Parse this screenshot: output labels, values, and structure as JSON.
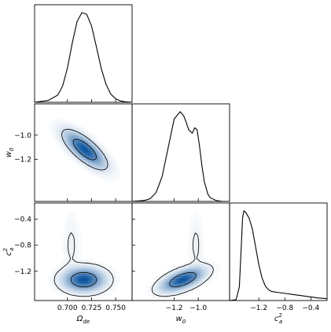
{
  "chart_data": {
    "type": "corner",
    "colors": {
      "density": "#1f77b4",
      "line": "#000000"
    },
    "parameters": [
      {
        "key": "omega_de",
        "label_base": "Ω",
        "label_sub": "de",
        "range": [
          0.666,
          0.767
        ],
        "ticks": [
          {
            "value": 0.7,
            "label": "0.700"
          },
          {
            "value": 0.725,
            "label": "0.725"
          },
          {
            "value": 0.75,
            "label": "0.750"
          }
        ]
      },
      {
        "key": "w0",
        "label_base": "w",
        "label_sub": "0",
        "range": [
          -1.55,
          -0.74
        ],
        "ticks": [
          {
            "value": -1.2,
            "label": "−1.2"
          },
          {
            "value": -1.0,
            "label": "−1.0"
          }
        ]
      },
      {
        "key": "ca2",
        "label_base": "c",
        "label_sub": "a",
        "label_sup": "2",
        "range": [
          -1.65,
          -0.15
        ],
        "ticks": [
          {
            "value": -1.2,
            "label": "−1.2"
          },
          {
            "value": -0.8,
            "label": "−0.8"
          },
          {
            "value": -0.4,
            "label": "−0.4"
          }
        ]
      }
    ],
    "marginals": {
      "omega_de": {
        "x": [
          0.666,
          0.68,
          0.69,
          0.695,
          0.7,
          0.705,
          0.71,
          0.715,
          0.72,
          0.725,
          0.73,
          0.735,
          0.74,
          0.745,
          0.75,
          0.755,
          0.76,
          0.767
        ],
        "density": [
          0.0,
          0.02,
          0.08,
          0.18,
          0.38,
          0.66,
          0.9,
          1.0,
          0.98,
          0.85,
          0.62,
          0.38,
          0.2,
          0.09,
          0.04,
          0.015,
          0.005,
          0.0
        ]
      },
      "w0": {
        "x": [
          -1.55,
          -1.45,
          -1.4,
          -1.35,
          -1.3,
          -1.25,
          -1.2,
          -1.15,
          -1.12,
          -1.1,
          -1.08,
          -1.05,
          -1.03,
          -1.01,
          -0.99,
          -0.97,
          -0.95,
          -0.92,
          -0.9,
          -0.85,
          -0.8,
          -0.74
        ],
        "density": [
          0.0,
          0.01,
          0.03,
          0.1,
          0.28,
          0.6,
          0.92,
          1.0,
          0.95,
          0.88,
          0.8,
          0.76,
          0.82,
          0.8,
          0.62,
          0.4,
          0.22,
          0.08,
          0.04,
          0.01,
          0.0,
          0.0
        ]
      },
      "ca2": {
        "x": [
          -1.65,
          -1.55,
          -1.5,
          -1.47,
          -1.45,
          -1.43,
          -1.4,
          -1.35,
          -1.3,
          -1.25,
          -1.2,
          -1.15,
          -1.1,
          -1.05,
          -1.0,
          -0.9,
          -0.8,
          -0.7,
          -0.6,
          -0.5,
          -0.4,
          -0.3,
          -0.15
        ],
        "density": [
          0.0,
          0.01,
          0.15,
          0.6,
          0.92,
          1.0,
          0.98,
          0.92,
          0.8,
          0.6,
          0.4,
          0.25,
          0.16,
          0.12,
          0.1,
          0.09,
          0.08,
          0.07,
          0.06,
          0.05,
          0.04,
          0.03,
          0.02
        ]
      }
    },
    "joints": [
      {
        "x": "omega_de",
        "y": "w0",
        "components": [
          {
            "center": [
              0.718,
              -1.12
            ],
            "sigma": [
              0.012,
              0.085
            ],
            "rho": -0.75,
            "weight": 1.0
          }
        ],
        "contour_levels": [
          0.6,
          0.14
        ]
      },
      {
        "x": "omega_de",
        "y": "ca2",
        "components": [
          {
            "center": [
              0.717,
              -1.33
            ],
            "sigma": [
              0.012,
              0.1
            ],
            "rho": 0.0,
            "weight": 1.0
          },
          {
            "center": [
              0.704,
              -0.8
            ],
            "sigma": [
              0.005,
              0.28
            ],
            "rho": 0.0,
            "weight": 0.05
          }
        ],
        "contour_levels": [
          0.55,
          0.04
        ]
      },
      {
        "x": "w0",
        "y": "ca2",
        "components": [
          {
            "center": [
              -1.13,
              -1.33
            ],
            "sigma": [
              0.1,
              0.1
            ],
            "rho": 0.6,
            "weight": 1.0
          },
          {
            "center": [
              -1.02,
              -0.8
            ],
            "sigma": [
              0.035,
              0.28
            ],
            "rho": 0.0,
            "weight": 0.05
          }
        ],
        "contour_levels": [
          0.55,
          0.04
        ]
      }
    ]
  }
}
